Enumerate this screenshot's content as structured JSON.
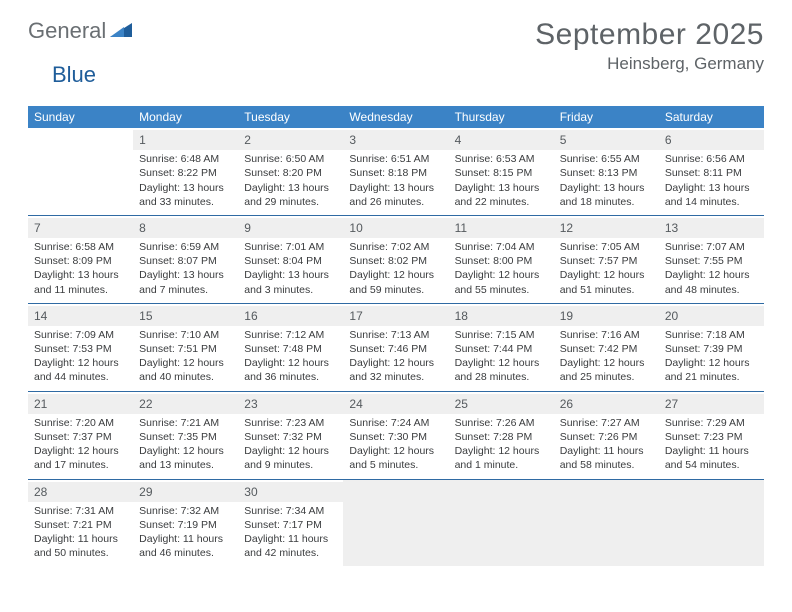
{
  "logo": {
    "part1": "General",
    "part2": "Blue"
  },
  "title": "September 2025",
  "location": "Heinsberg, Germany",
  "colors": {
    "header_bg": "#3b83c6",
    "header_text": "#ffffff",
    "daynum_bg": "#efefef",
    "border": "#2f6aa3",
    "body_text": "#3a3c3e",
    "title_text": "#5e6367",
    "logo_gray": "#6a6f73",
    "logo_blue": "#1f5d9a",
    "page_bg": "#ffffff"
  },
  "layout": {
    "columns": 7,
    "rows": 5,
    "header_fontsize": 12,
    "daynum_fontsize": 12,
    "body_fontsize": 10.5,
    "title_fontsize": 30,
    "location_fontsize": 17,
    "first_weekday_column": 1,
    "days_in_month": 30
  },
  "weekdays": [
    "Sunday",
    "Monday",
    "Tuesday",
    "Wednesday",
    "Thursday",
    "Friday",
    "Saturday"
  ],
  "days": [
    {
      "n": 1,
      "sunrise": "6:48 AM",
      "sunset": "8:22 PM",
      "daylight": "13 hours and 33 minutes."
    },
    {
      "n": 2,
      "sunrise": "6:50 AM",
      "sunset": "8:20 PM",
      "daylight": "13 hours and 29 minutes."
    },
    {
      "n": 3,
      "sunrise": "6:51 AM",
      "sunset": "8:18 PM",
      "daylight": "13 hours and 26 minutes."
    },
    {
      "n": 4,
      "sunrise": "6:53 AM",
      "sunset": "8:15 PM",
      "daylight": "13 hours and 22 minutes."
    },
    {
      "n": 5,
      "sunrise": "6:55 AM",
      "sunset": "8:13 PM",
      "daylight": "13 hours and 18 minutes."
    },
    {
      "n": 6,
      "sunrise": "6:56 AM",
      "sunset": "8:11 PM",
      "daylight": "13 hours and 14 minutes."
    },
    {
      "n": 7,
      "sunrise": "6:58 AM",
      "sunset": "8:09 PM",
      "daylight": "13 hours and 11 minutes."
    },
    {
      "n": 8,
      "sunrise": "6:59 AM",
      "sunset": "8:07 PM",
      "daylight": "13 hours and 7 minutes."
    },
    {
      "n": 9,
      "sunrise": "7:01 AM",
      "sunset": "8:04 PM",
      "daylight": "13 hours and 3 minutes."
    },
    {
      "n": 10,
      "sunrise": "7:02 AM",
      "sunset": "8:02 PM",
      "daylight": "12 hours and 59 minutes."
    },
    {
      "n": 11,
      "sunrise": "7:04 AM",
      "sunset": "8:00 PM",
      "daylight": "12 hours and 55 minutes."
    },
    {
      "n": 12,
      "sunrise": "7:05 AM",
      "sunset": "7:57 PM",
      "daylight": "12 hours and 51 minutes."
    },
    {
      "n": 13,
      "sunrise": "7:07 AM",
      "sunset": "7:55 PM",
      "daylight": "12 hours and 48 minutes."
    },
    {
      "n": 14,
      "sunrise": "7:09 AM",
      "sunset": "7:53 PM",
      "daylight": "12 hours and 44 minutes."
    },
    {
      "n": 15,
      "sunrise": "7:10 AM",
      "sunset": "7:51 PM",
      "daylight": "12 hours and 40 minutes."
    },
    {
      "n": 16,
      "sunrise": "7:12 AM",
      "sunset": "7:48 PM",
      "daylight": "12 hours and 36 minutes."
    },
    {
      "n": 17,
      "sunrise": "7:13 AM",
      "sunset": "7:46 PM",
      "daylight": "12 hours and 32 minutes."
    },
    {
      "n": 18,
      "sunrise": "7:15 AM",
      "sunset": "7:44 PM",
      "daylight": "12 hours and 28 minutes."
    },
    {
      "n": 19,
      "sunrise": "7:16 AM",
      "sunset": "7:42 PM",
      "daylight": "12 hours and 25 minutes."
    },
    {
      "n": 20,
      "sunrise": "7:18 AM",
      "sunset": "7:39 PM",
      "daylight": "12 hours and 21 minutes."
    },
    {
      "n": 21,
      "sunrise": "7:20 AM",
      "sunset": "7:37 PM",
      "daylight": "12 hours and 17 minutes."
    },
    {
      "n": 22,
      "sunrise": "7:21 AM",
      "sunset": "7:35 PM",
      "daylight": "12 hours and 13 minutes."
    },
    {
      "n": 23,
      "sunrise": "7:23 AM",
      "sunset": "7:32 PM",
      "daylight": "12 hours and 9 minutes."
    },
    {
      "n": 24,
      "sunrise": "7:24 AM",
      "sunset": "7:30 PM",
      "daylight": "12 hours and 5 minutes."
    },
    {
      "n": 25,
      "sunrise": "7:26 AM",
      "sunset": "7:28 PM",
      "daylight": "12 hours and 1 minute."
    },
    {
      "n": 26,
      "sunrise": "7:27 AM",
      "sunset": "7:26 PM",
      "daylight": "11 hours and 58 minutes."
    },
    {
      "n": 27,
      "sunrise": "7:29 AM",
      "sunset": "7:23 PM",
      "daylight": "11 hours and 54 minutes."
    },
    {
      "n": 28,
      "sunrise": "7:31 AM",
      "sunset": "7:21 PM",
      "daylight": "11 hours and 50 minutes."
    },
    {
      "n": 29,
      "sunrise": "7:32 AM",
      "sunset": "7:19 PM",
      "daylight": "11 hours and 46 minutes."
    },
    {
      "n": 30,
      "sunrise": "7:34 AM",
      "sunset": "7:17 PM",
      "daylight": "11 hours and 42 minutes."
    }
  ],
  "labels": {
    "sunrise_prefix": "Sunrise: ",
    "sunset_prefix": "Sunset: ",
    "daylight_prefix": "Daylight: "
  }
}
